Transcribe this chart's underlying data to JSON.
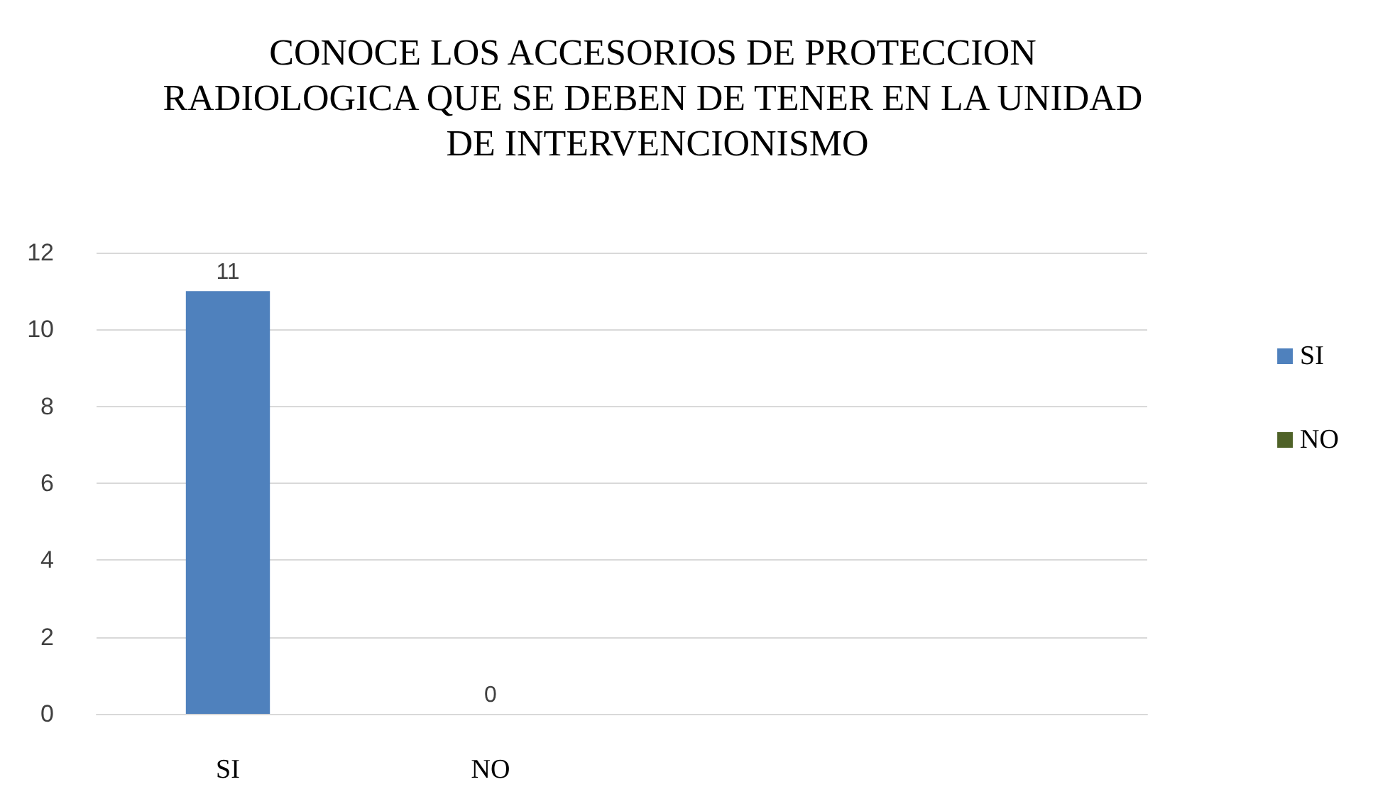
{
  "chart_data": {
    "type": "bar",
    "title": "CONOCE LOS ACCESORIOS DE PROTECCION RADIOLOGICA QUE SE DEBEN DE TENER EN LA UNIDAD DE INTERVENCIONISMO",
    "categories": [
      "SI",
      "NO",
      null,
      null
    ],
    "series": [
      {
        "name": "SI",
        "color": "#4f81bd",
        "values": [
          11,
          null,
          null,
          null
        ]
      },
      {
        "name": "NO",
        "color": "#4f6228",
        "values": [
          null,
          0,
          null,
          null
        ]
      }
    ],
    "ylim": [
      0,
      12
    ],
    "yticks": [
      0,
      2,
      4,
      6,
      8,
      10,
      12
    ],
    "grid": "y",
    "legend": "right",
    "data_labels": true
  }
}
